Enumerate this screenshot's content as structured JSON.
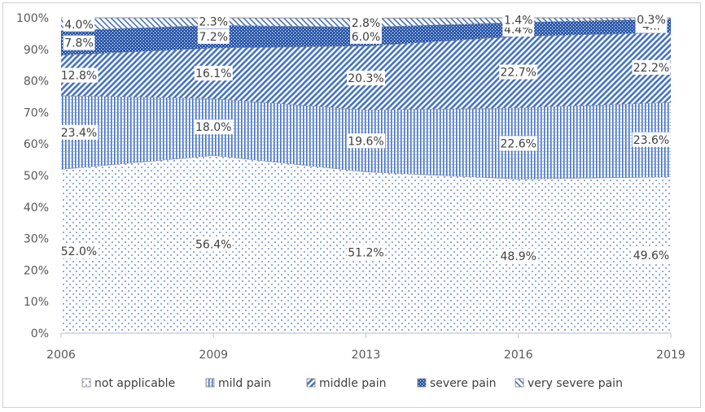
{
  "chart_data": {
    "type": "area",
    "stacked": true,
    "percent": true,
    "x": [
      "2006",
      "2009",
      "2013",
      "2016",
      "2019"
    ],
    "ylim": [
      0,
      100
    ],
    "yticks": [
      "0%",
      "10%",
      "20%",
      "30%",
      "40%",
      "50%",
      "60%",
      "70%",
      "80%",
      "90%",
      "100%"
    ],
    "grid": false,
    "legend_position": "bottom",
    "series": [
      {
        "name": "not applicable",
        "values": [
          52.0,
          56.4,
          51.2,
          48.9,
          49.6
        ],
        "labels": [
          "52.0%",
          "56.4%",
          "51.2%",
          "48.9%",
          "49.6%"
        ],
        "color": "#4472c4",
        "pattern": "dots"
      },
      {
        "name": "mild pain",
        "values": [
          23.4,
          18.0,
          19.6,
          22.6,
          23.6
        ],
        "labels": [
          "23.4%",
          "18.0%",
          "19.6%",
          "22.6%",
          "23.6%"
        ],
        "color": "#4472c4",
        "pattern": "vertical-lines"
      },
      {
        "name": "middle pain",
        "values": [
          12.8,
          16.1,
          20.3,
          22.7,
          22.2
        ],
        "labels": [
          "12.8%",
          "16.1%",
          "20.3%",
          "22.7%",
          "22.2%"
        ],
        "color": "#4472c4",
        "pattern": "diagonal-dense"
      },
      {
        "name": "severe pain",
        "values": [
          7.8,
          7.2,
          6.0,
          4.4,
          4.3
        ],
        "labels": [
          "7.8%",
          "7.2%",
          "6.0%",
          "4.4%",
          "4..."
        ],
        "color": "#4472c4",
        "pattern": "solid-dark"
      },
      {
        "name": "very severe pain",
        "values": [
          4.0,
          2.3,
          2.8,
          1.4,
          0.3
        ],
        "labels": [
          "4.0%",
          "2.3%",
          "2.8%",
          "1.4%",
          "0.3%"
        ],
        "color": "#4472c4",
        "pattern": "diagonal-wide"
      }
    ]
  }
}
